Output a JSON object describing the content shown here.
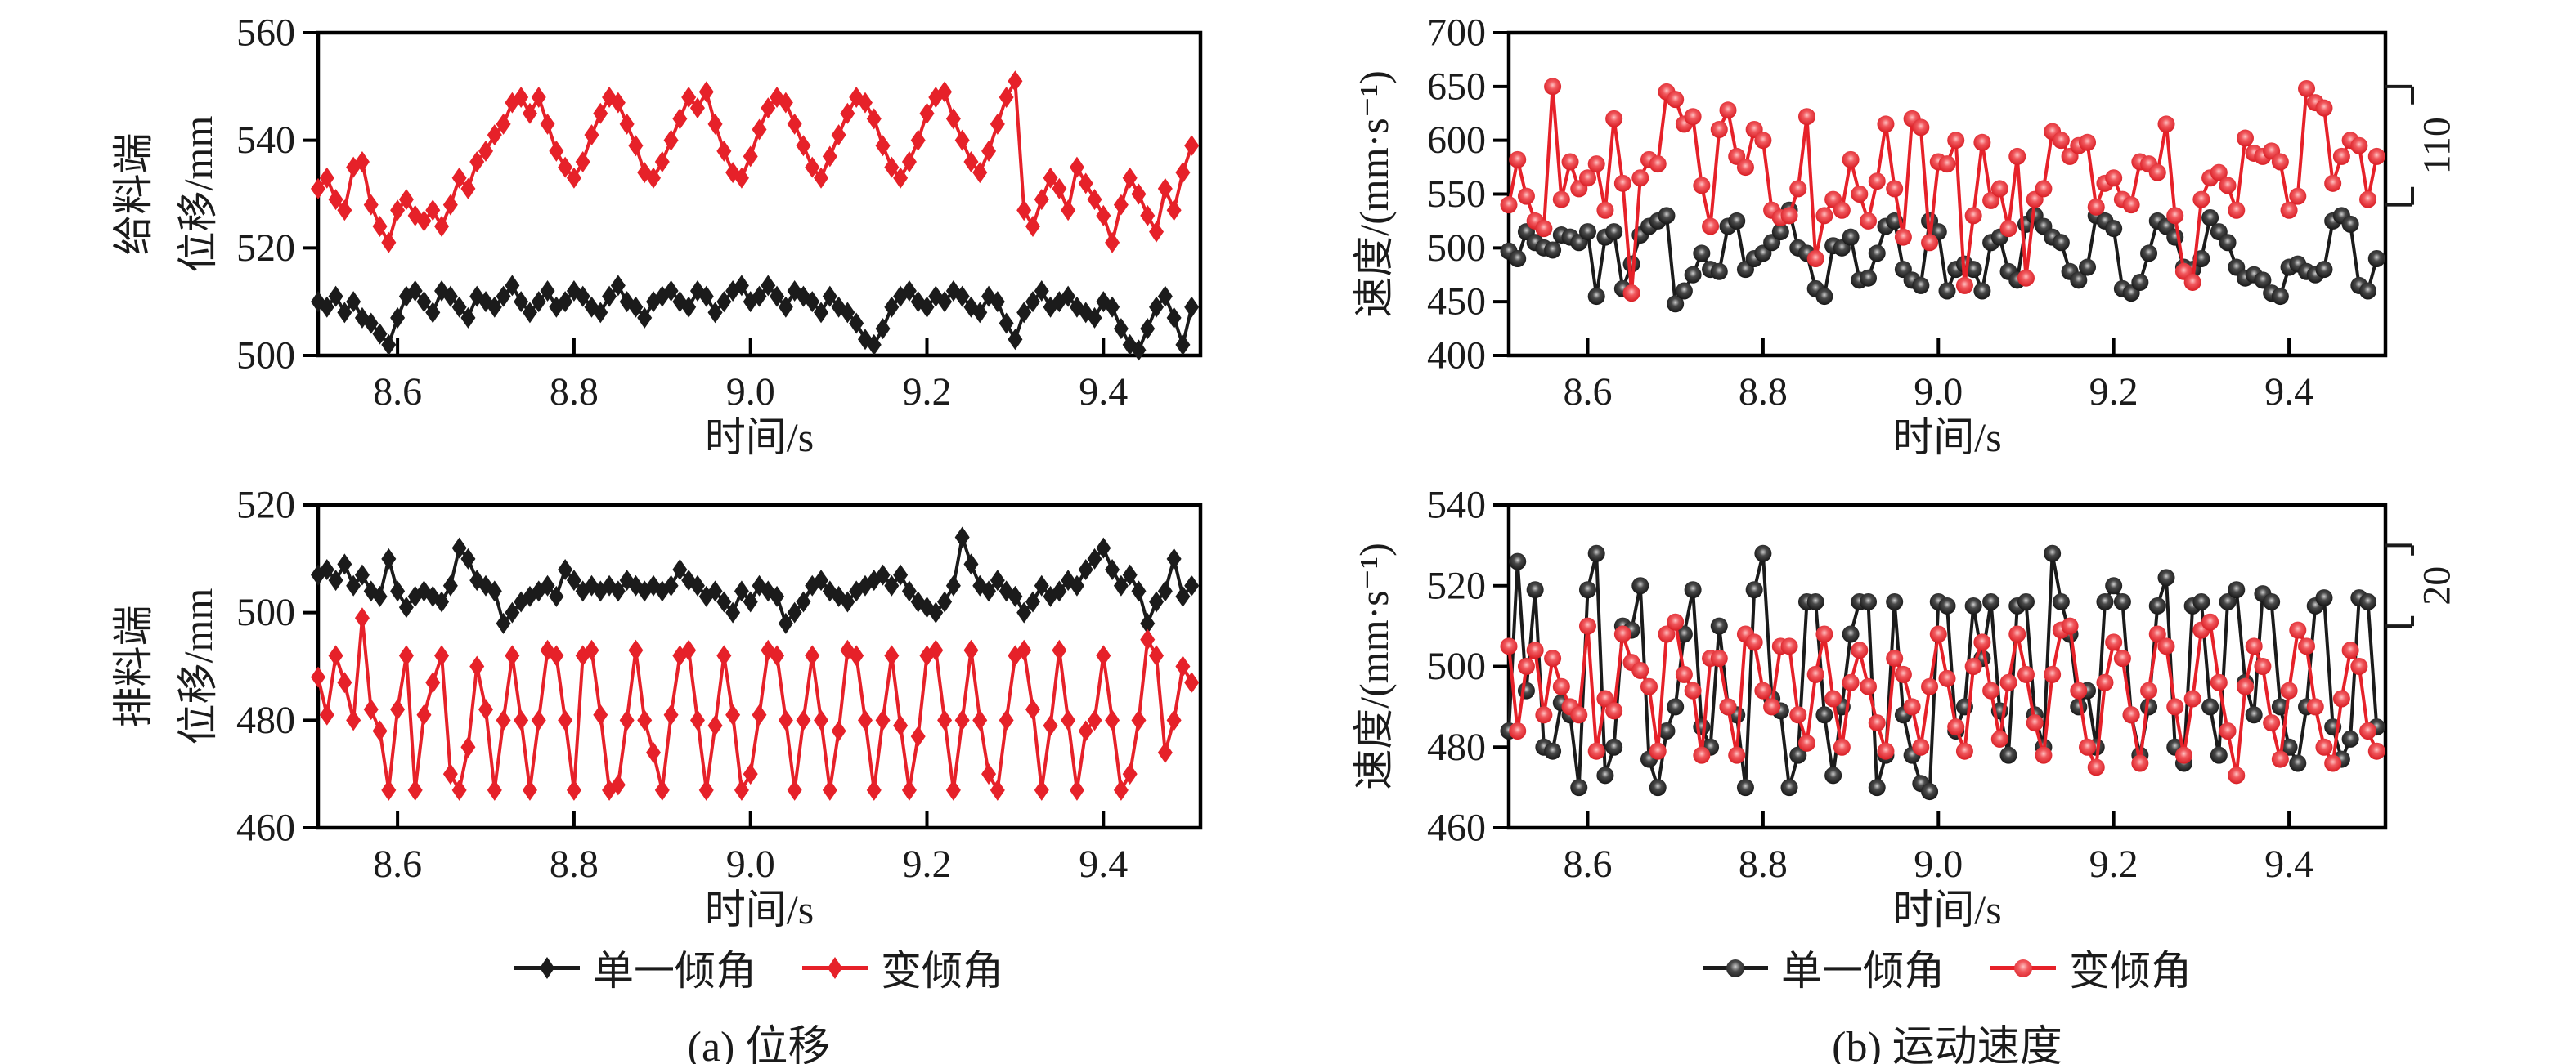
{
  "figure": {
    "legend": {
      "series1": "单一倾角",
      "series2": "变倾角"
    },
    "captions": {
      "a": "(a) 位移",
      "b": "(b) 运动速度"
    },
    "colors": {
      "black": "#1b1b1b",
      "red": "#e62129"
    }
  },
  "chart_data": [
    {
      "type": "line",
      "name": "feed-end-displacement",
      "ylabel_lines": [
        "给料端",
        "位移/mm"
      ],
      "xlabel": "时间/s",
      "marker": "diamond",
      "xlim": [
        8.51,
        9.51
      ],
      "ylim": [
        500,
        560
      ],
      "yticks": [
        "500",
        "520",
        "540",
        "560"
      ],
      "xticks": [
        "8.6",
        "8.8",
        "9.0",
        "9.2",
        "9.4"
      ],
      "x_start": 8.51,
      "x_step": 0.01,
      "annotation": null,
      "series": [
        {
          "name": "单一倾角",
          "color": "black",
          "values": [
            510,
            509,
            511,
            508,
            510,
            507,
            506,
            504,
            502,
            507,
            511,
            512,
            510,
            508,
            512,
            511,
            509,
            507,
            511,
            510,
            509,
            511,
            513,
            510,
            508,
            510,
            512,
            509,
            510,
            512,
            511,
            509,
            508,
            511,
            513,
            510,
            509,
            507,
            510,
            511,
            512,
            510,
            509,
            512,
            511,
            508,
            510,
            512,
            513,
            510,
            511,
            513,
            511,
            509,
            512,
            511,
            510,
            508,
            511,
            509,
            508,
            506,
            503,
            502,
            505,
            509,
            511,
            512,
            510,
            509,
            511,
            510,
            512,
            511,
            509,
            508,
            511,
            510,
            506,
            503,
            508,
            510,
            512,
            509,
            510,
            511,
            509,
            508,
            507,
            510,
            509,
            505,
            502,
            501,
            505,
            509,
            511,
            507,
            502,
            509
          ]
        },
        {
          "name": "变倾角",
          "color": "red",
          "values": [
            531,
            533,
            529,
            527,
            535,
            536,
            528,
            524,
            521,
            527,
            529,
            526,
            525,
            527,
            524,
            528,
            533,
            531,
            536,
            538,
            541,
            543,
            547,
            548,
            545,
            548,
            543,
            538,
            535,
            533,
            536,
            541,
            545,
            548,
            547,
            543,
            539,
            534,
            533,
            536,
            540,
            544,
            548,
            546,
            549,
            543,
            538,
            534,
            533,
            537,
            542,
            546,
            548,
            547,
            543,
            539,
            535,
            533,
            537,
            541,
            545,
            548,
            547,
            544,
            539,
            535,
            533,
            536,
            540,
            545,
            548,
            549,
            544,
            540,
            536,
            534,
            538,
            543,
            548,
            551,
            527,
            524,
            529,
            533,
            531,
            527,
            535,
            532,
            529,
            526,
            521,
            528,
            533,
            530,
            526,
            523,
            531,
            527,
            534,
            539
          ]
        }
      ]
    },
    {
      "type": "line",
      "name": "velocity-upper",
      "ylabel": "速度/(mm·s⁻¹)",
      "xlabel": "时间/s",
      "marker": "circle",
      "xlim": [
        8.51,
        9.51
      ],
      "ylim": [
        400,
        700
      ],
      "yticks": [
        "400",
        "450",
        "500",
        "550",
        "600",
        "650",
        "700"
      ],
      "xticks": [
        "8.6",
        "8.8",
        "9.0",
        "9.2",
        "9.4"
      ],
      "x_start": 8.51,
      "x_step": 0.01,
      "annotation": {
        "label": "110",
        "y_top": 650,
        "y_bottom": 540
      },
      "series": [
        {
          "name": "单一倾角",
          "color": "black",
          "values": [
            497,
            490,
            515,
            505,
            500,
            498,
            512,
            510,
            505,
            515,
            455,
            510,
            515,
            462,
            485,
            512,
            520,
            525,
            530,
            448,
            460,
            475,
            495,
            480,
            478,
            520,
            525,
            480,
            490,
            495,
            505,
            515,
            535,
            500,
            495,
            462,
            455,
            502,
            500,
            510,
            470,
            472,
            495,
            520,
            525,
            480,
            470,
            465,
            525,
            515,
            460,
            480,
            485,
            480,
            460,
            505,
            510,
            478,
            470,
            522,
            530,
            520,
            510,
            505,
            478,
            470,
            482,
            530,
            525,
            518,
            462,
            458,
            468,
            495,
            525,
            520,
            510,
            482,
            480,
            490,
            528,
            515,
            505,
            482,
            472,
            475,
            470,
            458,
            455,
            482,
            485,
            478,
            475,
            480,
            525,
            530,
            522,
            465,
            460,
            490
          ]
        },
        {
          "name": "变倾角",
          "color": "red",
          "values": [
            540,
            582,
            548,
            525,
            518,
            650,
            545,
            580,
            555,
            565,
            578,
            535,
            620,
            560,
            458,
            565,
            582,
            578,
            645,
            638,
            615,
            622,
            558,
            520,
            610,
            628,
            585,
            575,
            610,
            600,
            535,
            528,
            530,
            555,
            622,
            490,
            530,
            545,
            535,
            582,
            550,
            525,
            562,
            615,
            555,
            510,
            620,
            612,
            505,
            580,
            578,
            600,
            465,
            530,
            598,
            544,
            555,
            518,
            585,
            472,
            545,
            555,
            608,
            600,
            585,
            595,
            598,
            538,
            560,
            565,
            545,
            540,
            580,
            578,
            570,
            615,
            530,
            478,
            468,
            545,
            565,
            570,
            558,
            535,
            602,
            588,
            585,
            590,
            580,
            535,
            548,
            648,
            635,
            630,
            560,
            585,
            600,
            595,
            545,
            585
          ]
        }
      ]
    },
    {
      "type": "line",
      "name": "discharge-end-displacement",
      "ylabel_lines": [
        "排料端",
        "位移/mm"
      ],
      "xlabel": "时间/s",
      "marker": "diamond",
      "xlim": [
        8.51,
        9.51
      ],
      "ylim": [
        460,
        520
      ],
      "yticks": [
        "460",
        "480",
        "500",
        "520"
      ],
      "xticks": [
        "8.6",
        "8.8",
        "9.0",
        "9.2",
        "9.4"
      ],
      "x_start": 8.51,
      "x_step": 0.01,
      "annotation": null,
      "series": [
        {
          "name": "单一倾角",
          "color": "black",
          "values": [
            507,
            508,
            506,
            509,
            505,
            507,
            504,
            503,
            510,
            504,
            501,
            503,
            504,
            503,
            502,
            505,
            512,
            510,
            506,
            505,
            504,
            498,
            500,
            502,
            503,
            504,
            505,
            503,
            508,
            506,
            504,
            505,
            504,
            505,
            504,
            506,
            505,
            504,
            505,
            504,
            505,
            508,
            506,
            505,
            503,
            504,
            502,
            500,
            504,
            502,
            505,
            504,
            503,
            498,
            500,
            502,
            505,
            506,
            504,
            503,
            502,
            504,
            505,
            506,
            507,
            505,
            507,
            504,
            502,
            501,
            500,
            502,
            505,
            514,
            509,
            505,
            504,
            506,
            504,
            503,
            500,
            502,
            505,
            503,
            504,
            506,
            505,
            508,
            510,
            512,
            508,
            505,
            507,
            504,
            498,
            502,
            504,
            510,
            503,
            505
          ]
        },
        {
          "name": "变倾角",
          "color": "red",
          "values": [
            488,
            481,
            492,
            487,
            480,
            499,
            482,
            478,
            467,
            482,
            492,
            467,
            481,
            487,
            492,
            470,
            467,
            475,
            490,
            482,
            467,
            480,
            492,
            480,
            467,
            480,
            493,
            492,
            480,
            467,
            492,
            493,
            481,
            467,
            468,
            480,
            493,
            480,
            474,
            467,
            481,
            492,
            493,
            480,
            467,
            479,
            492,
            481,
            467,
            470,
            481,
            493,
            492,
            480,
            467,
            480,
            492,
            480,
            467,
            478,
            493,
            492,
            480,
            467,
            480,
            492,
            479,
            467,
            477,
            492,
            493,
            480,
            467,
            480,
            493,
            480,
            470,
            467,
            480,
            492,
            493,
            482,
            467,
            479,
            493,
            480,
            467,
            478,
            480,
            492,
            480,
            467,
            470,
            480,
            495,
            492,
            474,
            480,
            490,
            487
          ]
        }
      ]
    },
    {
      "type": "line",
      "name": "velocity-lower",
      "ylabel": "速度/(mm·s⁻¹)",
      "xlabel": "时间/s",
      "marker": "circle",
      "xlim": [
        8.51,
        9.51
      ],
      "ylim": [
        460,
        540
      ],
      "yticks": [
        "460",
        "480",
        "500",
        "520",
        "540"
      ],
      "xticks": [
        "8.6",
        "8.8",
        "9.0",
        "9.2",
        "9.4"
      ],
      "x_start": 8.51,
      "x_step": 0.01,
      "annotation": {
        "label": "20",
        "y_top": 530,
        "y_bottom": 510
      },
      "series": [
        {
          "name": "单一倾角",
          "color": "black",
          "values": [
            484,
            526,
            494,
            519,
            480,
            479,
            491,
            488,
            470,
            519,
            528,
            473,
            480,
            510,
            509,
            520,
            477,
            470,
            484,
            490,
            508,
            519,
            485,
            480,
            510,
            490,
            488,
            470,
            519,
            528,
            492,
            489,
            470,
            478,
            516,
            516,
            488,
            473,
            490,
            508,
            516,
            516,
            470,
            478,
            516,
            488,
            478,
            471,
            469,
            516,
            515,
            484,
            490,
            515,
            502,
            516,
            489,
            478,
            515,
            516,
            488,
            480,
            528,
            516,
            508,
            490,
            494,
            480,
            516,
            520,
            516,
            488,
            478,
            490,
            515,
            522,
            480,
            476,
            515,
            516,
            490,
            478,
            516,
            519,
            496,
            488,
            518,
            516,
            490,
            480,
            476,
            490,
            515,
            517,
            485,
            477,
            482,
            517,
            516,
            485
          ]
        },
        {
          "name": "变倾角",
          "color": "red",
          "values": [
            505,
            484,
            500,
            504,
            488,
            502,
            495,
            490,
            488,
            510,
            479,
            492,
            489,
            508,
            501,
            499,
            495,
            479,
            508,
            511,
            498,
            494,
            478,
            502,
            502,
            490,
            478,
            508,
            506,
            494,
            490,
            505,
            505,
            488,
            481,
            498,
            508,
            492,
            480,
            496,
            504,
            495,
            486,
            479,
            502,
            498,
            490,
            480,
            495,
            508,
            497,
            485,
            479,
            500,
            506,
            494,
            482,
            496,
            508,
            498,
            486,
            478,
            498,
            509,
            510,
            494,
            480,
            475,
            496,
            506,
            502,
            488,
            476,
            494,
            508,
            505,
            490,
            478,
            492,
            509,
            511,
            496,
            484,
            473,
            495,
            505,
            500,
            486,
            477,
            494,
            509,
            505,
            490,
            480,
            476,
            492,
            504,
            500,
            484,
            479
          ]
        }
      ]
    }
  ]
}
